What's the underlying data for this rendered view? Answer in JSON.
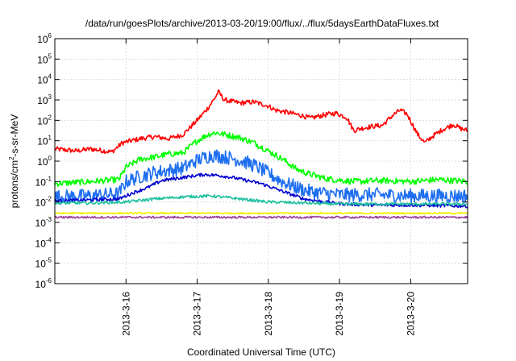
{
  "chart_data": {
    "type": "line",
    "title": "/data/run/goesPlots/archive/2013-03-20/19:00/flux/../flux/5daysEarthDataFluxes.txt",
    "xlabel": "Coordinated Universal Time (UTC)",
    "ylabel": {
      "pre": "protons/cm",
      "sup": "2",
      "post": "-s-sr-MeV"
    },
    "x_ticks": [
      "2013-3-16",
      "2013-3-17",
      "2013-3-18",
      "2013-3-19",
      "2013-3-20"
    ],
    "x_tick_days": [
      1,
      2,
      3,
      4,
      5
    ],
    "xlim_days": [
      0.0,
      5.8
    ],
    "ylim_log10": [
      -6,
      6
    ],
    "y_ticks": [
      {
        "base": "10",
        "exp": "6"
      },
      {
        "base": "10",
        "exp": "5"
      },
      {
        "base": "10",
        "exp": "4"
      },
      {
        "base": "10",
        "exp": "3"
      },
      {
        "base": "10",
        "exp": "2"
      },
      {
        "base": "10",
        "exp": "1"
      },
      {
        "base": "10",
        "exp": "0"
      },
      {
        "base": "10",
        "exp": "-1"
      },
      {
        "base": "10",
        "exp": "-2"
      },
      {
        "base": "10",
        "exp": "-3"
      },
      {
        "base": "10",
        "exp": "-4"
      },
      {
        "base": "10",
        "exp": "-5"
      },
      {
        "base": "10",
        "exp": "-6"
      }
    ],
    "y_tick_values": [
      6,
      5,
      4,
      3,
      2,
      1,
      0,
      -1,
      -2,
      -3,
      -4,
      -5,
      -6
    ],
    "y_scale": "log",
    "grid": true,
    "series": [
      {
        "color": "#ff0000",
        "noise": 0.12,
        "points": [
          [
            0.0,
            0.6
          ],
          [
            0.3,
            0.5
          ],
          [
            0.5,
            0.6
          ],
          [
            0.8,
            0.45
          ],
          [
            0.95,
            0.9
          ],
          [
            1.2,
            1.1
          ],
          [
            1.4,
            1.2
          ],
          [
            1.6,
            1.1
          ],
          [
            1.8,
            1.3
          ],
          [
            2.0,
            2.0
          ],
          [
            2.15,
            2.6
          ],
          [
            2.25,
            3.1
          ],
          [
            2.3,
            3.4
          ],
          [
            2.38,
            3.0
          ],
          [
            2.45,
            2.95
          ],
          [
            2.6,
            2.85
          ],
          [
            2.8,
            2.9
          ],
          [
            2.9,
            2.8
          ],
          [
            3.0,
            2.7
          ],
          [
            3.1,
            2.5
          ],
          [
            3.25,
            2.4
          ],
          [
            3.45,
            2.25
          ],
          [
            3.6,
            2.1
          ],
          [
            3.7,
            2.2
          ],
          [
            3.85,
            2.3
          ],
          [
            3.95,
            2.35
          ],
          [
            4.1,
            2.15
          ],
          [
            4.2,
            1.5
          ],
          [
            4.3,
            1.6
          ],
          [
            4.45,
            1.7
          ],
          [
            4.6,
            1.75
          ],
          [
            4.75,
            2.25
          ],
          [
            4.85,
            2.5
          ],
          [
            4.95,
            2.3
          ],
          [
            5.1,
            1.3
          ],
          [
            5.2,
            0.9
          ],
          [
            5.3,
            1.2
          ],
          [
            5.45,
            1.55
          ],
          [
            5.6,
            1.8
          ],
          [
            5.7,
            1.6
          ],
          [
            5.8,
            1.5
          ]
        ]
      },
      {
        "color": "#00ff00",
        "noise": 0.15,
        "points": [
          [
            0.0,
            -1.1
          ],
          [
            0.5,
            -1.0
          ],
          [
            0.9,
            -0.9
          ],
          [
            1.0,
            -0.3
          ],
          [
            1.2,
            0.1
          ],
          [
            1.4,
            0.2
          ],
          [
            1.6,
            0.35
          ],
          [
            1.8,
            0.4
          ],
          [
            2.0,
            1.0
          ],
          [
            2.15,
            1.3
          ],
          [
            2.25,
            1.4
          ],
          [
            2.4,
            1.3
          ],
          [
            2.6,
            1.15
          ],
          [
            2.8,
            0.9
          ],
          [
            3.0,
            0.5
          ],
          [
            3.2,
            0.1
          ],
          [
            3.4,
            -0.4
          ],
          [
            3.55,
            -0.6
          ],
          [
            3.8,
            -0.85
          ],
          [
            4.2,
            -1.0
          ],
          [
            4.6,
            -0.95
          ],
          [
            5.0,
            -1.0
          ],
          [
            5.4,
            -0.9
          ],
          [
            5.8,
            -1.0
          ]
        ]
      },
      {
        "color": "#1e6ff0",
        "noise": 0.35,
        "points": [
          [
            0.0,
            -1.75
          ],
          [
            0.5,
            -1.7
          ],
          [
            0.9,
            -1.6
          ],
          [
            1.0,
            -1.0
          ],
          [
            1.2,
            -0.75
          ],
          [
            1.4,
            -0.55
          ],
          [
            1.6,
            -0.45
          ],
          [
            1.8,
            -0.35
          ],
          [
            2.0,
            0.05
          ],
          [
            2.2,
            0.3
          ],
          [
            2.4,
            0.2
          ],
          [
            2.6,
            0.05
          ],
          [
            2.8,
            -0.2
          ],
          [
            3.0,
            -0.6
          ],
          [
            3.2,
            -1.0
          ],
          [
            3.4,
            -1.3
          ],
          [
            3.6,
            -1.5
          ],
          [
            4.0,
            -1.65
          ],
          [
            4.5,
            -1.65
          ],
          [
            5.0,
            -1.7
          ],
          [
            5.8,
            -1.7
          ]
        ]
      },
      {
        "color": "#0000d0",
        "noise": 0.08,
        "points": [
          [
            0.0,
            -1.95
          ],
          [
            0.5,
            -1.9
          ],
          [
            0.9,
            -1.85
          ],
          [
            1.1,
            -1.55
          ],
          [
            1.3,
            -1.3
          ],
          [
            1.5,
            -0.95
          ],
          [
            1.7,
            -0.85
          ],
          [
            1.9,
            -0.75
          ],
          [
            2.1,
            -0.65
          ],
          [
            2.3,
            -0.7
          ],
          [
            2.5,
            -0.8
          ],
          [
            2.7,
            -0.95
          ],
          [
            2.9,
            -1.1
          ],
          [
            3.1,
            -1.35
          ],
          [
            3.3,
            -1.6
          ],
          [
            3.5,
            -1.85
          ],
          [
            3.7,
            -1.95
          ],
          [
            3.9,
            -2.05
          ],
          [
            4.1,
            -2.1
          ],
          [
            4.5,
            -2.15
          ],
          [
            5.0,
            -2.15
          ],
          [
            5.8,
            -2.2
          ]
        ]
      },
      {
        "color": "#20c0a0",
        "noise": 0.07,
        "points": [
          [
            0.0,
            -2.05
          ],
          [
            0.5,
            -2.05
          ],
          [
            1.0,
            -2.0
          ],
          [
            1.4,
            -1.85
          ],
          [
            1.8,
            -1.75
          ],
          [
            2.2,
            -1.7
          ],
          [
            2.6,
            -1.85
          ],
          [
            3.0,
            -2.0
          ],
          [
            3.5,
            -2.05
          ],
          [
            4.0,
            -2.1
          ],
          [
            5.0,
            -2.1
          ],
          [
            5.8,
            -2.1
          ]
        ]
      },
      {
        "color": "#f0f000",
        "noise": 0.04,
        "points": [
          [
            0.0,
            -2.55
          ],
          [
            2.5,
            -2.55
          ],
          [
            5.8,
            -2.55
          ]
        ]
      },
      {
        "color": "#a040a0",
        "noise": 0.05,
        "points": [
          [
            0.0,
            -2.75
          ],
          [
            2.5,
            -2.75
          ],
          [
            5.8,
            -2.75
          ]
        ]
      }
    ]
  }
}
